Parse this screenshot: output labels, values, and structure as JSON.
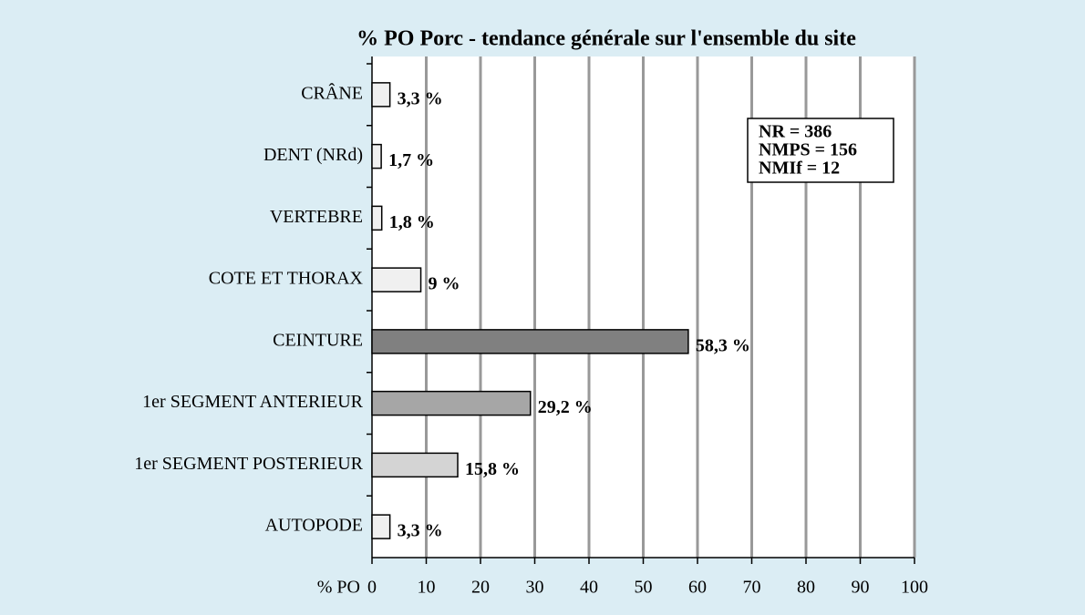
{
  "chart_data": {
    "type": "barh",
    "title": "% PO Porc - tendance générale sur l'ensemble du site",
    "x_label": "% PO",
    "categories": [
      "CRÂNE",
      "DENT (NRd)",
      "VERTEBRE",
      "COTE ET THORAX",
      "CEINTURE",
      "1er SEGMENT ANTERIEUR",
      "1er SEGMENT POSTERIEUR",
      "AUTOPODE"
    ],
    "values": [
      3.3,
      1.7,
      1.8,
      9,
      58.3,
      29.2,
      15.8,
      3.3
    ],
    "value_labels": [
      "3,3 %",
      "1,7 %",
      "1,8 %",
      "9 %",
      "58,3 %",
      "29,2 %",
      "15,8 %",
      "3,3 %"
    ],
    "colors": [
      "#f0f0f0",
      "#f0f0f0",
      "#f0f0f0",
      "#f0f0f0",
      "#808080",
      "#a6a6a6",
      "#d4d4d4",
      "#f0f0f0"
    ],
    "xlim": [
      0,
      100
    ],
    "xticks": [
      0,
      10,
      20,
      30,
      40,
      50,
      60,
      70,
      80,
      90,
      100
    ],
    "grid": true,
    "annotations": [
      "NR = 386",
      "NMPS = 156",
      "NMIf = 12"
    ]
  }
}
